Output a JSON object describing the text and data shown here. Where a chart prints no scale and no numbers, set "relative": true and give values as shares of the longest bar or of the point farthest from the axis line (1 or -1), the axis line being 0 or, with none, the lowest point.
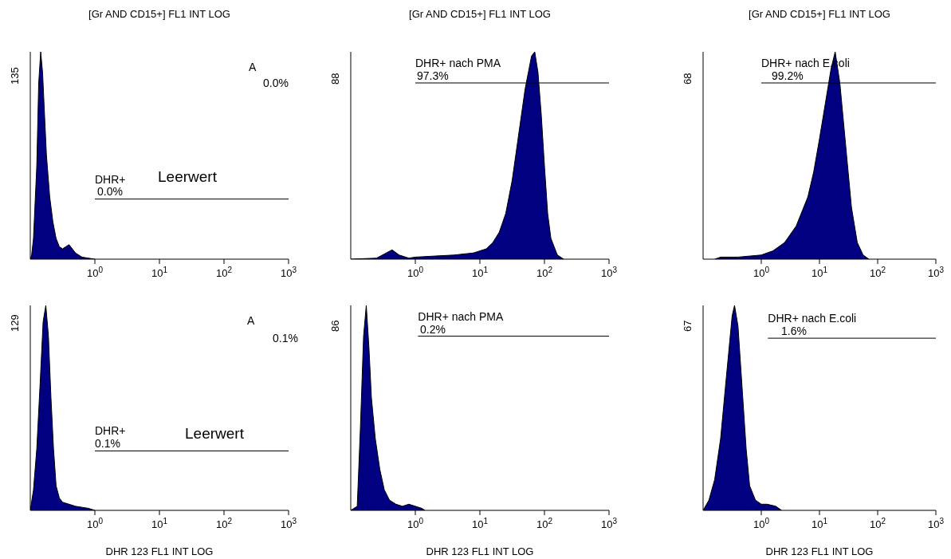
{
  "chart_data": [
    {
      "type": "area",
      "title": "[Gr AND CD15+] FL1 INT LOG",
      "relative": true,
      "log": "x",
      "xlim": [
        0.1,
        1000
      ],
      "xticks": [
        {
          "value": 1,
          "label": "10$^{0}$"
        },
        {
          "value": 10,
          "label": "10$^{1}$"
        },
        {
          "value": 100,
          "label": "10$^{2}$"
        },
        {
          "value": 1000,
          "label": "10$^{3}$"
        }
      ],
      "series": [
        {
          "color": "#000080",
          "x": [
            0.1,
            0.105,
            0.112,
            0.126,
            0.135,
            0.145,
            0.155,
            0.166,
            0.178,
            0.2,
            0.224,
            0.251,
            0.282,
            0.316,
            0.355,
            0.398,
            0.447,
            0.501,
            0.631,
            0.794,
            1
          ],
          "values": [
            0,
            0.02,
            0.1,
            0.45,
            0.85,
            1.0,
            0.9,
            0.7,
            0.5,
            0.3,
            0.18,
            0.1,
            0.06,
            0.05,
            0.06,
            0.07,
            0.05,
            0.03,
            0.01,
            0.005,
            0
          ]
        },
        {
          "type": "line",
          "name": "DHR+",
          "color": "#000000",
          "x": [
            1,
            1000
          ],
          "values": [
            0.29,
            0.29
          ]
        }
      ],
      "annotations": [
        "0.0%",
        "A",
        "0.0%",
        "Leerwert",
        "135"
      ]
    },
    {
      "type": "area",
      "title": "[Gr AND CD15+] FL1 INT LOG",
      "relative": true,
      "log": "x",
      "xlim": [
        0.1,
        1000
      ],
      "xticks": [
        {
          "value": 1,
          "label": "10$^{0}$"
        },
        {
          "value": 10,
          "label": "10$^{1}$"
        },
        {
          "value": 100,
          "label": "10$^{2}$"
        },
        {
          "value": 1000,
          "label": "10$^{3}$"
        }
      ],
      "series": [
        {
          "color": "#000080",
          "x": [
            0.1,
            0.251,
            0.355,
            0.437,
            0.562,
            0.794,
            1,
            1.995,
            3.981,
            7.943,
            12.59,
            15.85,
            19.95,
            25.12,
            31.62,
            39.81,
            50.12,
            63.1,
            70.79,
            79.43,
            89.13,
            100,
            112.2,
            125.9,
            158.5,
            199.5
          ],
          "values": [
            0,
            0.005,
            0.03,
            0.045,
            0.02,
            0.005,
            0.01,
            0.015,
            0.02,
            0.03,
            0.05,
            0.08,
            0.13,
            0.22,
            0.38,
            0.6,
            0.82,
            0.98,
            1.0,
            0.9,
            0.7,
            0.45,
            0.22,
            0.1,
            0.02,
            0
          ]
        },
        {
          "type": "line",
          "name": "DHR+ nach PMA",
          "color": "#000000",
          "x": [
            1,
            1000
          ],
          "values": [
            0.85,
            0.85
          ]
        }
      ],
      "annotations": [
        "97.3%",
        "88"
      ]
    },
    {
      "type": "area",
      "title": "[Gr AND CD15+] FL1 INT LOG",
      "relative": true,
      "log": "x",
      "xlim": [
        0.1,
        1000
      ],
      "xticks": [
        {
          "value": 1,
          "label": "10$^{0}$"
        },
        {
          "value": 10,
          "label": "10$^{1}$"
        },
        {
          "value": 100,
          "label": "10$^{2}$"
        },
        {
          "value": 1000,
          "label": "10$^{3}$"
        }
      ],
      "series": [
        {
          "color": "#000080",
          "x": [
            0.158,
            0.2,
            0.398,
            1,
            1.585,
            2.512,
            3.981,
            6.31,
            7.943,
            10,
            12.59,
            15.85,
            18.62,
            22.39,
            28.18,
            35.48,
            44.67,
            56.23,
            70.79
          ],
          "values": [
            0,
            0.01,
            0.01,
            0.02,
            0.04,
            0.08,
            0.16,
            0.3,
            0.42,
            0.58,
            0.75,
            0.92,
            1.0,
            0.85,
            0.55,
            0.25,
            0.08,
            0.02,
            0
          ]
        },
        {
          "type": "line",
          "name": "DHR+ nach E.coli",
          "color": "#000000",
          "x": [
            1,
            1000
          ],
          "values": [
            0.85,
            0.85
          ]
        }
      ],
      "annotations": [
        "99.2%",
        "68"
      ]
    },
    {
      "type": "area",
      "xlabel": "DHR 123 FL1 INT LOG",
      "relative": true,
      "log": "x",
      "xlim": [
        0.1,
        1000
      ],
      "xticks": [
        {
          "value": 1,
          "label": "10$^{0}$"
        },
        {
          "value": 10,
          "label": "10$^{1}$"
        },
        {
          "value": 100,
          "label": "10$^{2}$"
        },
        {
          "value": 1000,
          "label": "10$^{3}$"
        }
      ],
      "series": [
        {
          "color": "#000080",
          "x": [
            0.1,
            0.112,
            0.126,
            0.141,
            0.158,
            0.174,
            0.191,
            0.209,
            0.229,
            0.251,
            0.282,
            0.316,
            0.398,
            0.501,
            0.631,
            0.794,
            1
          ],
          "values": [
            0,
            0.1,
            0.3,
            0.6,
            0.92,
            1.0,
            0.85,
            0.55,
            0.3,
            0.12,
            0.06,
            0.04,
            0.03,
            0.02,
            0.015,
            0.01,
            0
          ]
        },
        {
          "type": "line",
          "name": "DHR+",
          "color": "#000000",
          "x": [
            1,
            1000
          ],
          "values": [
            0.29,
            0.29
          ]
        }
      ],
      "annotations": [
        "0.1%",
        "A",
        "0.1%",
        "Leerwert",
        "129"
      ]
    },
    {
      "type": "area",
      "xlabel": "DHR 123 FL1 INT LOG",
      "relative": true,
      "log": "x",
      "xlim": [
        0.1,
        1000
      ],
      "xticks": [
        {
          "value": 1,
          "label": "10$^{0}$"
        },
        {
          "value": 10,
          "label": "10$^{1}$"
        },
        {
          "value": 100,
          "label": "10$^{2}$"
        },
        {
          "value": 1000,
          "label": "10$^{3}$"
        }
      ],
      "series": [
        {
          "color": "#000080",
          "x": [
            0.1,
            0.126,
            0.141,
            0.158,
            0.174,
            0.191,
            0.209,
            0.24,
            0.282,
            0.331,
            0.398,
            0.501,
            0.631,
            0.794,
            1,
            1.259,
            1.413
          ],
          "values": [
            0,
            0.02,
            0.4,
            0.85,
            1.0,
            0.8,
            0.55,
            0.35,
            0.2,
            0.1,
            0.05,
            0.03,
            0.02,
            0.03,
            0.02,
            0.01,
            0
          ]
        },
        {
          "type": "line",
          "name": "DHR+ nach PMA",
          "color": "#000000",
          "x": [
            1.1,
            1000
          ],
          "values": [
            0.85,
            0.85
          ]
        }
      ],
      "annotations": [
        "0.2%",
        "86"
      ]
    },
    {
      "type": "area",
      "xlabel": "DHR 123 FL1 INT LOG",
      "relative": true,
      "log": "x",
      "xlim": [
        0.1,
        1000
      ],
      "xticks": [
        {
          "value": 1,
          "label": "10$^{0}$"
        },
        {
          "value": 10,
          "label": "10$^{1}$"
        },
        {
          "value": 100,
          "label": "10$^{2}$"
        },
        {
          "value": 1000,
          "label": "10$^{3}$"
        }
      ],
      "series": [
        {
          "color": "#000080",
          "x": [
            0.1,
            0.126,
            0.158,
            0.2,
            0.251,
            0.316,
            0.347,
            0.398,
            0.468,
            0.55,
            0.631,
            0.794,
            1,
            1.259,
            1.778,
            2.239
          ],
          "values": [
            0,
            0.05,
            0.15,
            0.35,
            0.65,
            0.95,
            1.0,
            0.9,
            0.6,
            0.3,
            0.12,
            0.05,
            0.03,
            0.03,
            0.02,
            0
          ]
        },
        {
          "type": "line",
          "name": "DHR+ nach E.coli",
          "color": "#000000",
          "x": [
            1.3,
            1000
          ],
          "values": [
            0.84,
            0.84
          ]
        }
      ],
      "annotations": [
        "1.6%",
        "67"
      ]
    }
  ]
}
